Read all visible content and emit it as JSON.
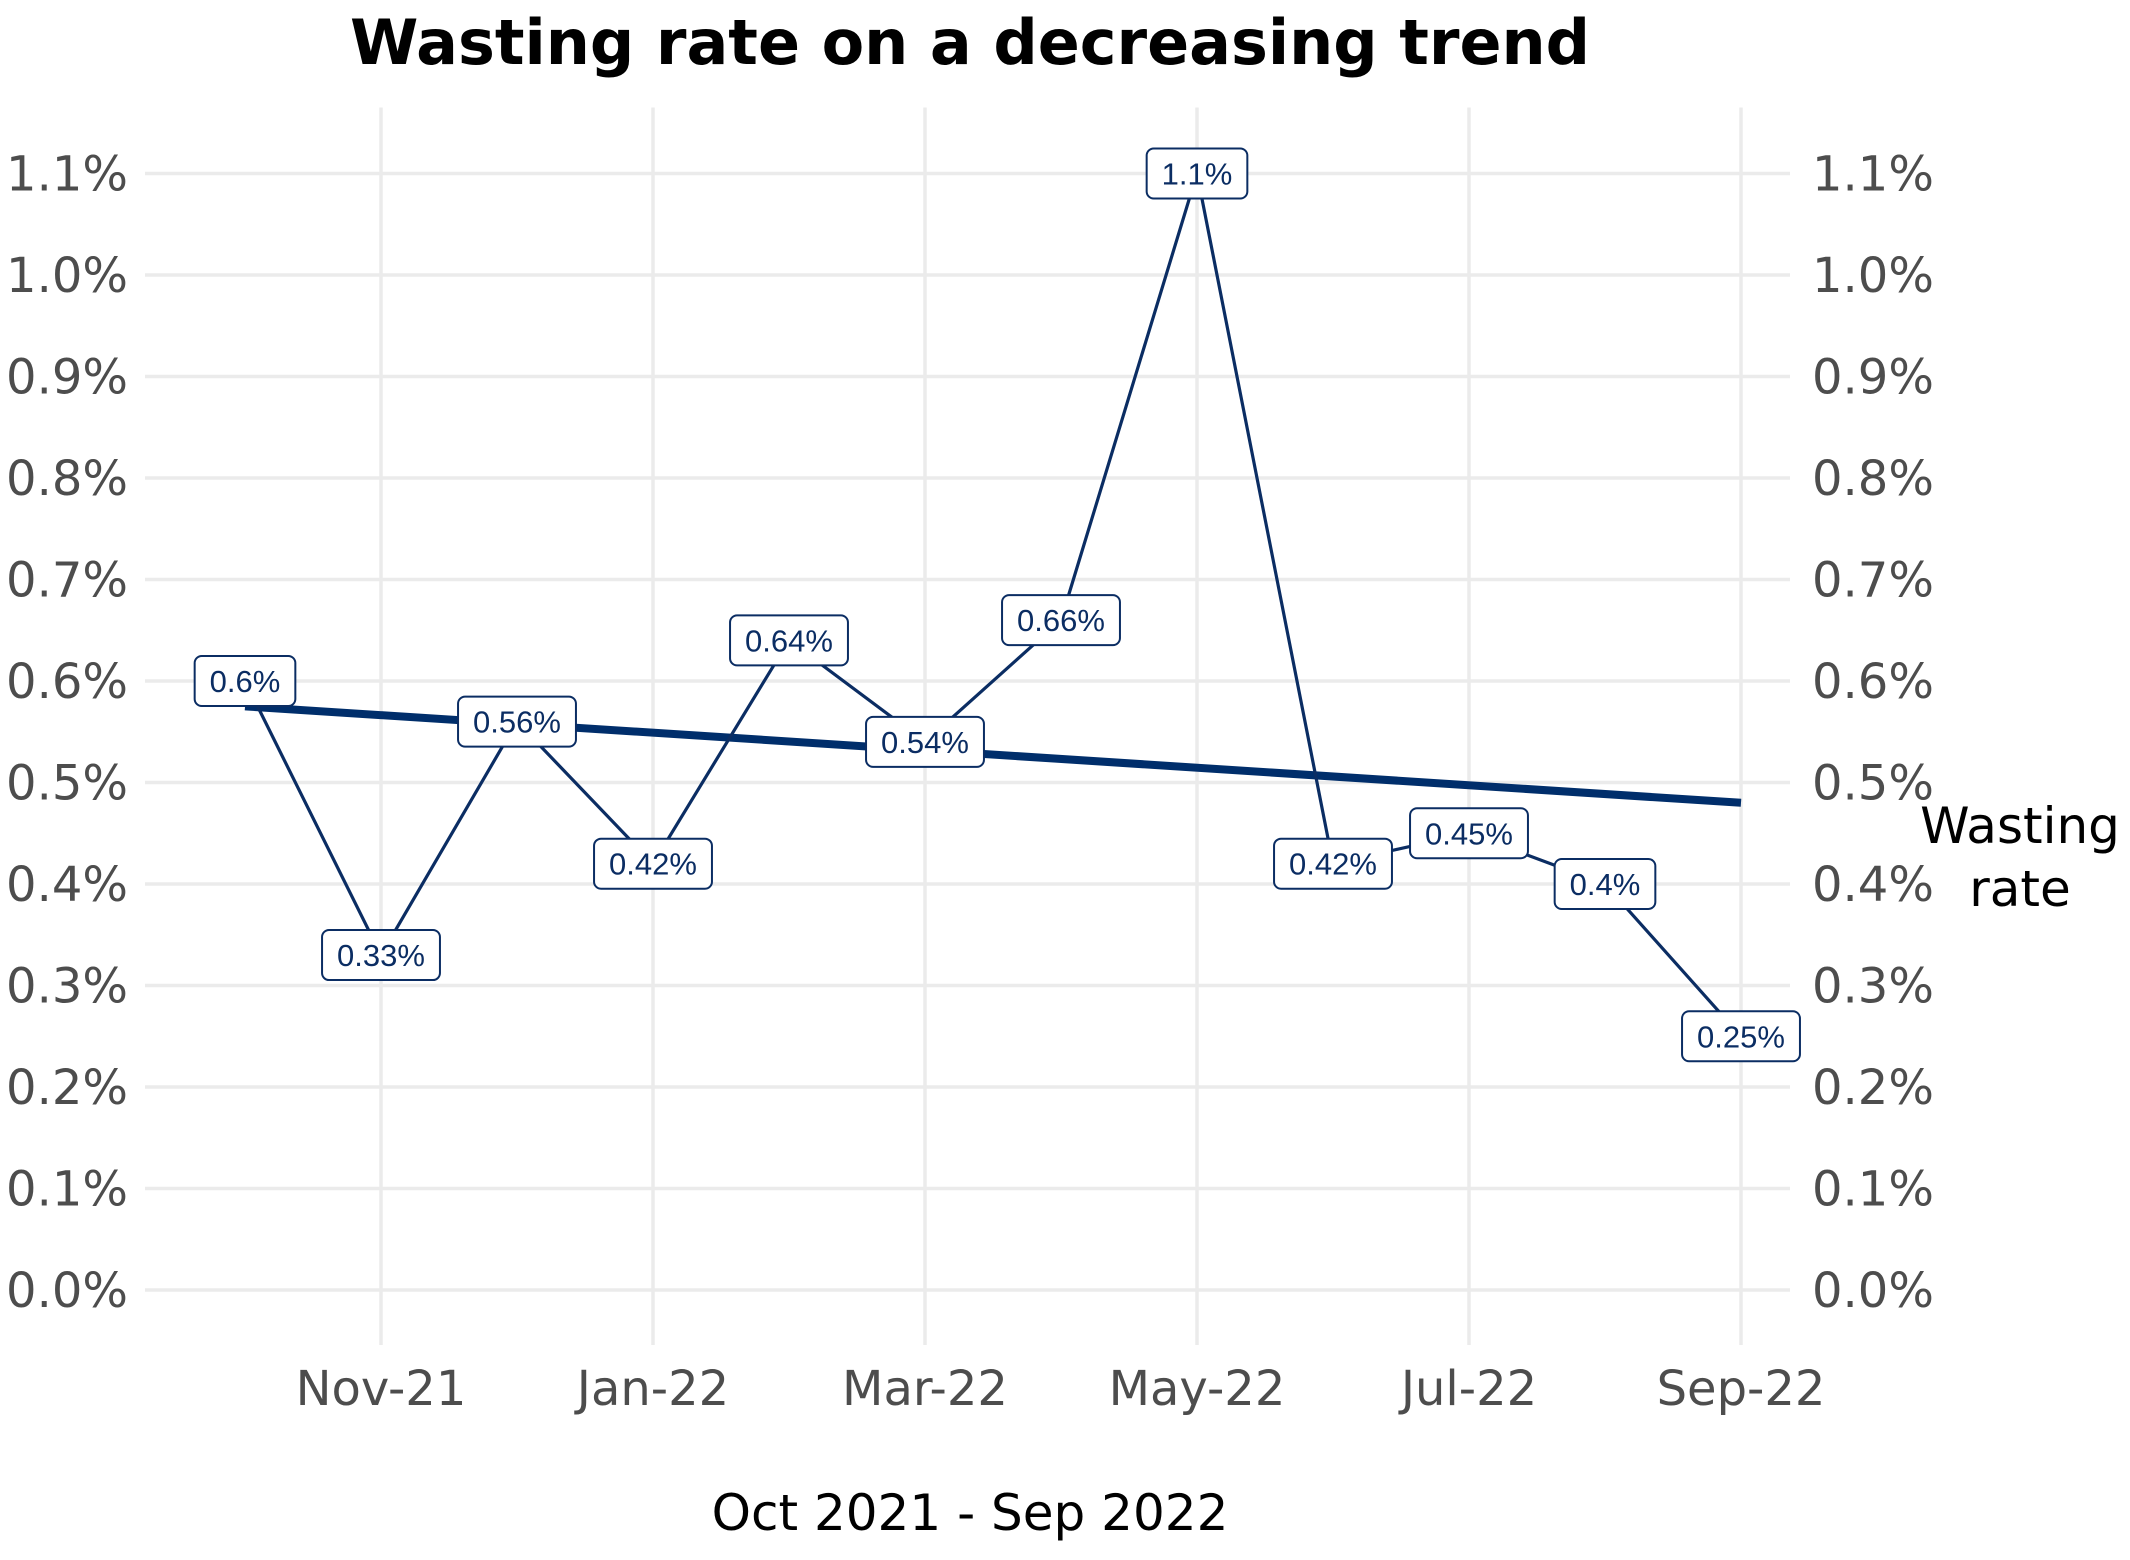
{
  "chart_data": {
    "type": "line",
    "title": "Wasting rate on a decreasing trend",
    "xlabel": "Oct 2021 - Sep 2022",
    "ylabel": "",
    "ylim": [
      0,
      1.1
    ],
    "y_ticks": [
      "0.0%",
      "0.1%",
      "0.2%",
      "0.3%",
      "0.4%",
      "0.5%",
      "0.6%",
      "0.7%",
      "0.8%",
      "0.9%",
      "1.0%",
      "1.1%"
    ],
    "y_tick_values": [
      0,
      0.1,
      0.2,
      0.3,
      0.4,
      0.5,
      0.6,
      0.7,
      0.8,
      0.9,
      1.0,
      1.1
    ],
    "x_ticks": [
      "Nov-21",
      "Jan-22",
      "Mar-22",
      "May-22",
      "Jul-22",
      "Sep-22"
    ],
    "x_tick_months": [
      1,
      3,
      5,
      7,
      9,
      11
    ],
    "x": [
      "Oct-21",
      "Nov-21",
      "Dec-21",
      "Jan-22",
      "Feb-22",
      "Mar-22",
      "Apr-22",
      "May-22",
      "Jun-22",
      "Jul-22",
      "Aug-22",
      "Sep-22"
    ],
    "series": [
      {
        "name": "Wasting rate",
        "values": [
          0.6,
          0.33,
          0.56,
          0.42,
          0.64,
          0.54,
          0.66,
          1.1,
          0.42,
          0.45,
          0.4,
          0.25
        ],
        "labels": [
          "0.6%",
          "0.33%",
          "0.56%",
          "0.42%",
          "0.64%",
          "0.54%",
          "0.66%",
          "1.1%",
          "0.42%",
          "0.45%",
          "0.4%",
          "0.25%"
        ]
      }
    ],
    "trend": {
      "start_value": 0.575,
      "end_value": 0.48
    },
    "legend": {
      "label_line1": "Wasting",
      "label_line2": "rate",
      "position": "right"
    },
    "secondary_y_axis": true,
    "grid": true,
    "colors": {
      "line": "#0b2d63",
      "trend": "#002e6b",
      "grid": "#ebebeb",
      "label_border": "#0b2d63",
      "label_text": "#0b2d63"
    }
  }
}
